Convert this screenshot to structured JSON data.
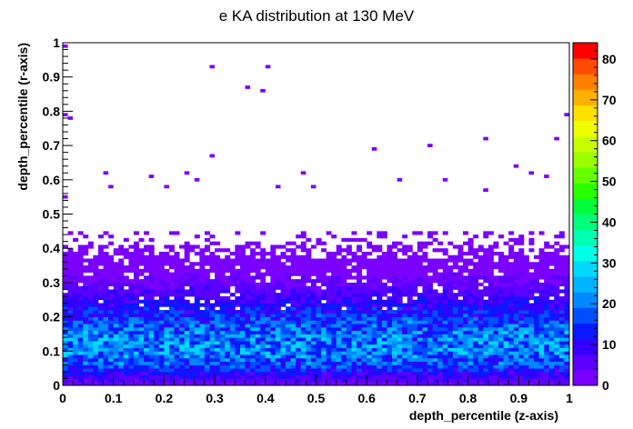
{
  "chart_data": {
    "type": "heatmap",
    "title": "e KA distribution at 130 MeV",
    "xlabel": "depth_percentile (z-axis)",
    "ylabel": "depth_percentile (r-axis)",
    "xlim": [
      0,
      1
    ],
    "ylim": [
      0,
      1
    ],
    "x_ticks": [
      "0",
      "0.1",
      "0.2",
      "0.3",
      "0.4",
      "0.5",
      "0.6",
      "0.7",
      "0.8",
      "0.9",
      "1"
    ],
    "y_ticks": [
      "0",
      "0.1",
      "0.2",
      "0.3",
      "0.4",
      "0.5",
      "0.6",
      "0.7",
      "0.8",
      "0.9",
      "1"
    ],
    "zlim": [
      0,
      84
    ],
    "z_ticks": [
      "0",
      "10",
      "20",
      "30",
      "40",
      "50",
      "60",
      "70",
      "80"
    ],
    "bins": [
      100,
      100
    ],
    "colormap": [
      "#7a00ff",
      "#5a00ff",
      "#3300ff",
      "#0a18ff",
      "#0050ff",
      "#0088ff",
      "#00b4ff",
      "#00d8ff",
      "#00ffe6",
      "#00ffb2",
      "#00ff7a",
      "#00ff3a",
      "#2aff00",
      "#66ff00",
      "#9cff00",
      "#c8ff00",
      "#f0ff00",
      "#ffe000",
      "#ffb000",
      "#ff8000",
      "#ff4a00",
      "#ff0000"
    ],
    "profile": {
      "r_bins": [
        0,
        0.02,
        0.05,
        0.08,
        0.1,
        0.12,
        0.15,
        0.18,
        0.2,
        0.22,
        0.25,
        0.28,
        0.3,
        0.32,
        0.35,
        0.38,
        0.4,
        0.42,
        0.45
      ],
      "mean_counts": [
        3,
        7,
        14,
        19,
        21,
        21,
        20,
        17,
        14,
        12,
        9,
        6,
        4,
        3,
        2,
        1.2,
        0.8,
        0.5,
        0.3
      ]
    },
    "outlier_points": [
      [
        0.0,
        0.99
      ],
      [
        0.29,
        0.93
      ],
      [
        0.4,
        0.93
      ],
      [
        0.36,
        0.87
      ],
      [
        0.39,
        0.86
      ],
      [
        0.0,
        0.79
      ],
      [
        0.01,
        0.78
      ],
      [
        0.99,
        0.79
      ],
      [
        0.83,
        0.72
      ],
      [
        0.97,
        0.72
      ],
      [
        0.61,
        0.69
      ],
      [
        0.72,
        0.7
      ],
      [
        0.29,
        0.67
      ],
      [
        0.89,
        0.64
      ],
      [
        0.92,
        0.62
      ],
      [
        0.08,
        0.62
      ],
      [
        0.17,
        0.61
      ],
      [
        0.24,
        0.62
      ],
      [
        0.47,
        0.62
      ],
      [
        0.26,
        0.6
      ],
      [
        0.95,
        0.61
      ],
      [
        0.66,
        0.6
      ],
      [
        0.75,
        0.6
      ],
      [
        0.09,
        0.58
      ],
      [
        0.2,
        0.58
      ],
      [
        0.42,
        0.58
      ],
      [
        0.49,
        0.58
      ],
      [
        0.83,
        0.57
      ],
      [
        0.0,
        0.55
      ]
    ]
  }
}
